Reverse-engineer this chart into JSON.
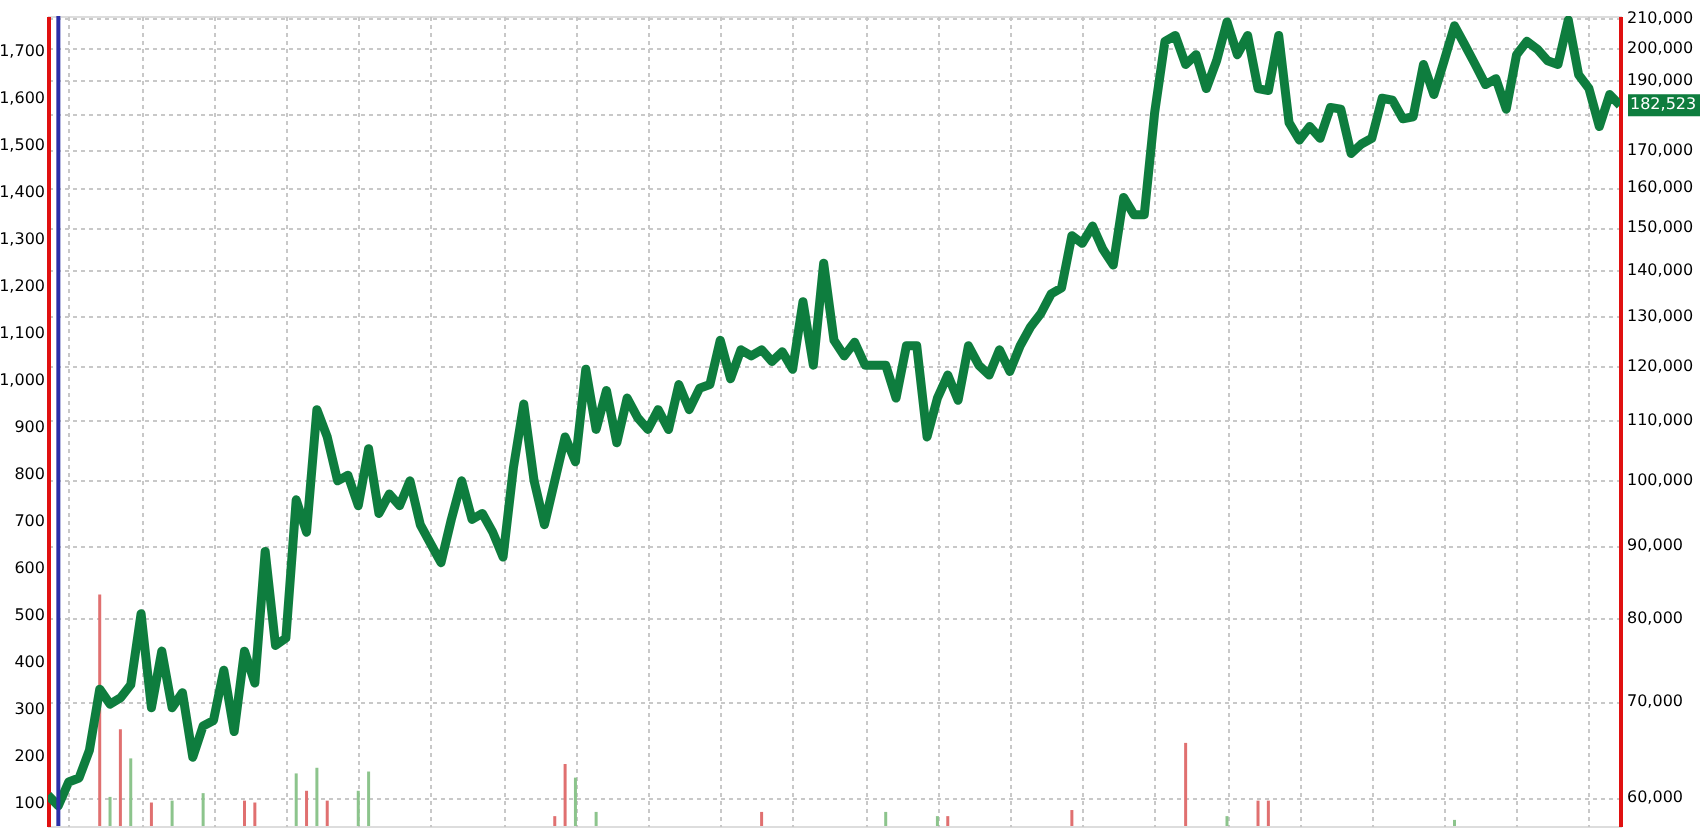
{
  "chart_data": {
    "type": "line",
    "categories": [
      null,
      null,
      null,
      null,
      null,
      null,
      null,
      null,
      null,
      null,
      null,
      null,
      null,
      null,
      null,
      null,
      null,
      null,
      null,
      null,
      null,
      null,
      null,
      null,
      null,
      null,
      null,
      null,
      null,
      null,
      null,
      null,
      null,
      null,
      null,
      null,
      null,
      null,
      null,
      null,
      null,
      null,
      null,
      null,
      null,
      null,
      null,
      null,
      null,
      null,
      null,
      null,
      null,
      null,
      null,
      null,
      null,
      null,
      null,
      null,
      null,
      null,
      null,
      null,
      null,
      null,
      null,
      null,
      null,
      null,
      null,
      null,
      null,
      null,
      null,
      null,
      null,
      null,
      null,
      null,
      null,
      null,
      null,
      null,
      null,
      null,
      null,
      null,
      null,
      null,
      null,
      null,
      null,
      null,
      null,
      null,
      null,
      null,
      null,
      null,
      null,
      null,
      null,
      null,
      null,
      null,
      null,
      null,
      null,
      null,
      null,
      null,
      null,
      null,
      null,
      null,
      null,
      null,
      null,
      null,
      null,
      null,
      null,
      null,
      null,
      null,
      null,
      null,
      null,
      null,
      null,
      null,
      null,
      null,
      null,
      null,
      null,
      null,
      null,
      null,
      null,
      null,
      null,
      null,
      null,
      null,
      null,
      null,
      null,
      null,
      null,
      null,
      null
    ],
    "ylim": [
      50,
      1775
    ],
    "yticks": [
      100,
      200,
      300,
      400,
      500,
      600,
      700,
      800,
      900,
      {
        "value": 1000,
        "label": "1,000"
      },
      {
        "value": 1100,
        "label": "1,100"
      },
      {
        "value": 1200,
        "label": "1,200"
      },
      {
        "value": 1300,
        "label": "1,300"
      },
      {
        "value": 1400,
        "label": "1,400"
      },
      {
        "value": 1500,
        "label": "1,500"
      },
      {
        "value": 1600,
        "label": "1,600"
      },
      {
        "value": 1700,
        "label": "1,700"
      }
    ],
    "y2lim": [
      57300,
      210700
    ],
    "y2ticks": [
      {
        "value": 60000,
        "label": "60,000"
      },
      {
        "value": 70000,
        "label": "70,000"
      },
      {
        "value": 80000,
        "label": "80,000"
      },
      {
        "value": 90000,
        "label": "90,000"
      },
      {
        "value": 100000,
        "label": "100,000"
      },
      {
        "value": 110000,
        "label": "110,000"
      },
      {
        "value": 120000,
        "label": "120,000"
      },
      {
        "value": 130000,
        "label": "130,000"
      },
      {
        "value": 140000,
        "label": "140,000"
      },
      {
        "value": 150000,
        "label": "150,000"
      },
      {
        "value": 160000,
        "label": "160,000"
      },
      {
        "value": 170000,
        "label": "170,000"
      },
      {
        "value": 180000,
        "label": null
      },
      {
        "value": 190000,
        "label": "190,000"
      },
      {
        "value": 200000,
        "label": "200,000"
      },
      {
        "value": 210000,
        "label": "210,000"
      }
    ],
    "log": "y2",
    "grid": true,
    "annotations": [
      "182,523"
    ],
    "series": [
      {
        "type": "bar",
        "color": "#e07070",
        "values": [
          null,
          null,
          null,
          null,
          null,
          543,
          null,
          256,
          null,
          null,
          100,
          null,
          null,
          null,
          null,
          null,
          null,
          null,
          null,
          104,
          100,
          null,
          null,
          null,
          null,
          125,
          null,
          104,
          null,
          null,
          null,
          null,
          null,
          null,
          null,
          null,
          null,
          null,
          null,
          null,
          null,
          null,
          null,
          null,
          null,
          null,
          null,
          null,
          null,
          71,
          182,
          null,
          null,
          null,
          null,
          null,
          null,
          null,
          null,
          null,
          null,
          null,
          null,
          null,
          null,
          null,
          null,
          null,
          null,
          80,
          null,
          null,
          null,
          null,
          null,
          null,
          null,
          null,
          null,
          null,
          null,
          null,
          null,
          null,
          null,
          null,
          null,
          71,
          null,
          null,
          null,
          null,
          null,
          null,
          null,
          null,
          null,
          null,
          null,
          84,
          null,
          null,
          null,
          null,
          null,
          null,
          null,
          null,
          null,
          null,
          227,
          null,
          null,
          null,
          null,
          null,
          null,
          104,
          104,
          null,
          null,
          null,
          null,
          null,
          null,
          null,
          null,
          null,
          null,
          null,
          null,
          null,
          null,
          null,
          null,
          null,
          null,
          null,
          null,
          null,
          null,
          null,
          null,
          null,
          null,
          null,
          null,
          null,
          null,
          null,
          null,
          null,
          null
        ]
      },
      {
        "type": "bar",
        "color": "#8cc48c",
        "values": [
          null,
          null,
          null,
          null,
          null,
          null,
          112,
          null,
          194,
          null,
          null,
          null,
          104,
          null,
          null,
          120,
          null,
          null,
          null,
          null,
          null,
          null,
          null,
          null,
          162,
          null,
          174,
          null,
          null,
          null,
          125,
          166,
          null,
          null,
          null,
          null,
          null,
          null,
          null,
          null,
          null,
          null,
          null,
          null,
          null,
          null,
          null,
          null,
          null,
          null,
          null,
          153,
          null,
          80,
          null,
          null,
          null,
          null,
          null,
          null,
          null,
          null,
          null,
          null,
          null,
          null,
          null,
          null,
          null,
          null,
          null,
          null,
          null,
          null,
          null,
          null,
          null,
          null,
          null,
          null,
          null,
          80,
          null,
          null,
          null,
          null,
          71,
          null,
          null,
          null,
          null,
          null,
          null,
          null,
          null,
          null,
          null,
          null,
          null,
          null,
          null,
          null,
          null,
          null,
          null,
          null,
          null,
          null,
          null,
          null,
          null,
          null,
          null,
          null,
          71,
          null,
          null,
          null,
          null,
          null,
          null,
          null,
          null,
          null,
          null,
          null,
          null,
          null,
          null,
          null,
          null,
          null,
          null,
          null,
          null,
          null,
          63,
          null,
          null,
          null,
          null,
          null,
          null,
          null,
          null,
          null,
          null,
          null,
          null,
          null,
          null,
          null,
          null
        ]
      },
      {
        "axis": "y2",
        "color": "#0e7d3e",
        "values": [
          60200,
          59200,
          61500,
          61900,
          64700,
          71400,
          69700,
          70400,
          71900,
          80600,
          69300,
          75900,
          69300,
          71000,
          64000,
          67300,
          67900,
          73600,
          66700,
          75900,
          72100,
          89100,
          76600,
          77500,
          96800,
          91900,
          111900,
          107100,
          99800,
          100700,
          95900,
          105100,
          94700,
          97700,
          95900,
          99800,
          93000,
          90200,
          87500,
          93800,
          99800,
          93800,
          94700,
          91900,
          88300,
          101900,
          112900,
          99800,
          93000,
          99800,
          107100,
          102900,
          119400,
          108400,
          115400,
          106100,
          114000,
          110500,
          108400,
          111900,
          108400,
          116500,
          111900,
          115800,
          116500,
          125100,
          117600,
          123200,
          122000,
          123200,
          120900,
          122800,
          119400,
          133100,
          120200,
          141600,
          125100,
          122000,
          124700,
          120200,
          120200,
          120200,
          114000,
          124000,
          124000,
          107100,
          114000,
          118300,
          113600,
          124000,
          120200,
          118300,
          123200,
          119000,
          124000,
          127800,
          130600,
          134800,
          136100,
          148000,
          146200,
          150300,
          144800,
          141200,
          157400,
          153100,
          153100,
          180300,
          202300,
          204200,
          194900,
          198000,
          187500,
          196100,
          208700,
          198000,
          204200,
          187500,
          186900,
          204200,
          177500,
          172600,
          176400,
          173100,
          181900,
          181400,
          168900,
          171500,
          173100,
          184600,
          184000,
          178600,
          179200,
          194900,
          185700,
          196100,
          207400,
          201100,
          194900,
          188700,
          190500,
          181400,
          198000,
          202300,
          199800,
          196100,
          194900,
          209350,
          191700,
          187500,
          176400,
          185700,
          182523
        ]
      }
    ]
  }
}
